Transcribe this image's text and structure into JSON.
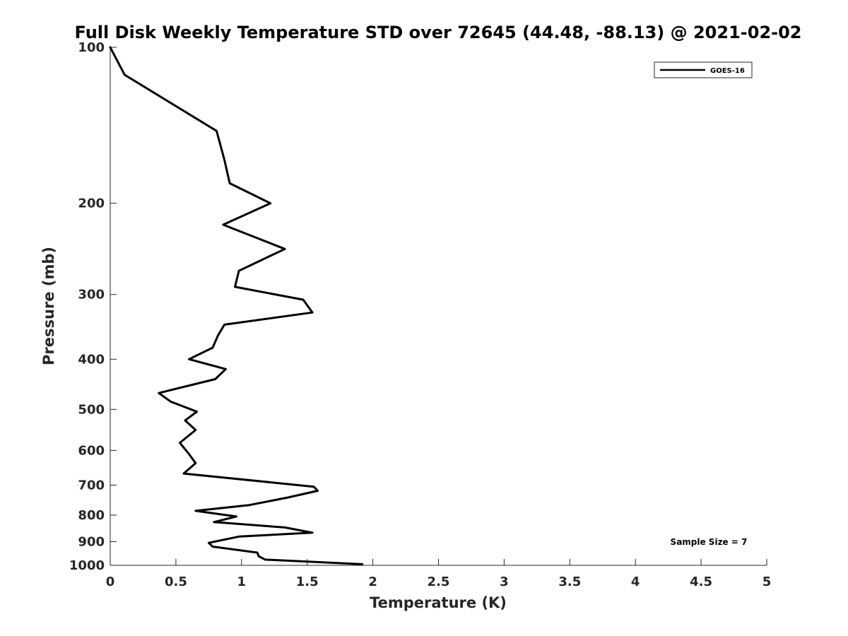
{
  "chart_data": {
    "type": "line",
    "title": "Full Disk Weekly Temperature STD over 72645 (44.48, -88.13) @ 2021-02-02",
    "xlabel": "Temperature (K)",
    "ylabel": "Pressure (mb)",
    "xlim": [
      0,
      5
    ],
    "ylim": [
      100,
      1000
    ],
    "y_scale": "log",
    "y_reversed": true,
    "grid": false,
    "legend_position": "top-right",
    "x_ticks": [
      0,
      0.5,
      1,
      1.5,
      2,
      2.5,
      3,
      3.5,
      4,
      4.5,
      5
    ],
    "x_tick_labels": [
      "0",
      "0.5",
      "1",
      "1.5",
      "2",
      "2.5",
      "3",
      "3.5",
      "4",
      "4.5",
      "5"
    ],
    "y_ticks": [
      100,
      200,
      300,
      400,
      500,
      600,
      700,
      800,
      900,
      1000
    ],
    "y_tick_labels": [
      "100",
      "200",
      "300",
      "400",
      "500",
      "600",
      "700",
      "800",
      "900",
      "1000"
    ],
    "series": [
      {
        "name": "GOES-16",
        "color": "#000000",
        "x": [
          0.0,
          0.11,
          0.81,
          0.87,
          0.91,
          1.22,
          0.86,
          1.33,
          0.98,
          0.95,
          1.47,
          1.54,
          0.87,
          0.82,
          0.78,
          0.6,
          0.88,
          0.8,
          0.37,
          0.46,
          0.66,
          0.57,
          0.65,
          0.53,
          0.6,
          0.65,
          0.56,
          1.55,
          1.58,
          1.35,
          1.06,
          0.65,
          0.96,
          0.79,
          1.33,
          1.54,
          0.98,
          0.75,
          0.78,
          1.12,
          1.13,
          1.18,
          1.92
        ],
        "y": [
          100,
          113,
          145,
          165,
          183,
          200,
          220,
          245,
          270,
          290,
          307,
          325,
          343,
          360,
          380,
          400,
          418,
          437,
          465,
          483,
          505,
          525,
          548,
          580,
          610,
          635,
          665,
          705,
          718,
          740,
          765,
          785,
          805,
          825,
          845,
          865,
          880,
          905,
          920,
          945,
          960,
          975,
          995
        ]
      }
    ],
    "annotation": "Sample Size = 7"
  }
}
